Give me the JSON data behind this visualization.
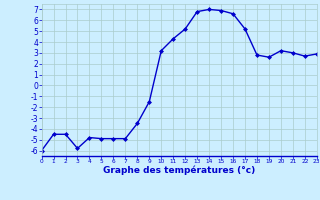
{
  "x": [
    0,
    1,
    2,
    3,
    4,
    5,
    6,
    7,
    8,
    9,
    10,
    11,
    12,
    13,
    14,
    15,
    16,
    17,
    18,
    19,
    20,
    21,
    22,
    23
  ],
  "y": [
    -6,
    -4.5,
    -4.5,
    -5.8,
    -4.8,
    -4.9,
    -4.9,
    -4.9,
    -3.5,
    -1.5,
    3.2,
    4.3,
    5.2,
    6.8,
    7.0,
    6.9,
    6.6,
    5.2,
    2.8,
    2.6,
    3.2,
    3.0,
    2.7,
    2.9
  ],
  "line_color": "#0000cc",
  "marker": "D",
  "marker_size": 2,
  "linewidth": 1.0,
  "xlabel": "Graphe des températures (°c)",
  "xlabel_fontsize": 6.5,
  "bg_color": "#cceeff",
  "grid_color": "#aacccc",
  "tick_color": "#0000cc",
  "label_color": "#0000cc",
  "ylim": [
    -6.5,
    7.5
  ],
  "xlim": [
    0,
    23
  ],
  "yticks": [
    -6,
    -5,
    -4,
    -3,
    -2,
    -1,
    0,
    1,
    2,
    3,
    4,
    5,
    6,
    7
  ],
  "xticks": [
    0,
    1,
    2,
    3,
    4,
    5,
    6,
    7,
    8,
    9,
    10,
    11,
    12,
    13,
    14,
    15,
    16,
    17,
    18,
    19,
    20,
    21,
    22,
    23
  ],
  "ytick_fontsize": 5.5,
  "xtick_fontsize": 4.2,
  "spine_color": "#0000cc",
  "bottom_spine_color": "#0000cc"
}
